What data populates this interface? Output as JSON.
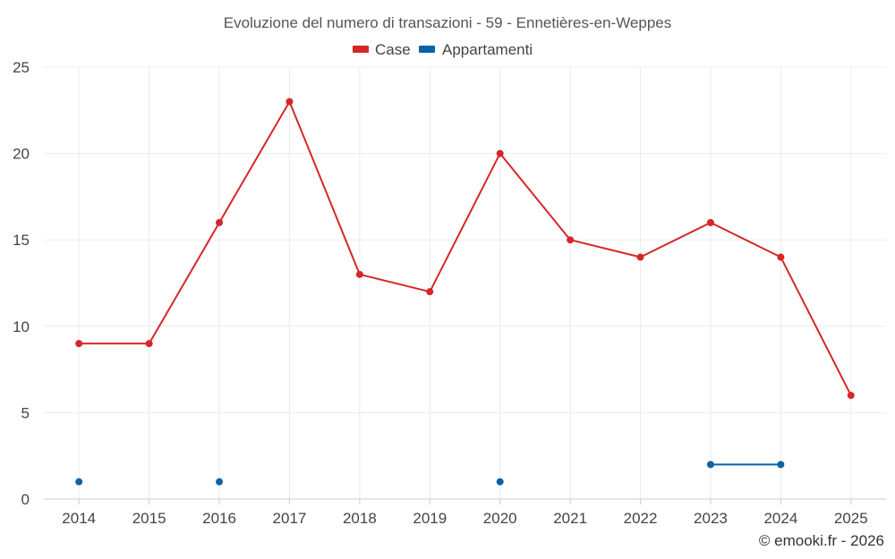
{
  "chart_data": {
    "type": "line",
    "title": "Evoluzione del numero di transazioni - 59 - Ennetières-en-Weppes",
    "categories": [
      "2014",
      "2015",
      "2016",
      "2017",
      "2018",
      "2019",
      "2020",
      "2021",
      "2022",
      "2023",
      "2024",
      "2025"
    ],
    "y_ticks": [
      "0",
      "5",
      "10",
      "15",
      "20",
      "25"
    ],
    "ylim": [
      0,
      25
    ],
    "grid": true,
    "legend_position": "top-center",
    "series": [
      {
        "name": "Case",
        "color": "#d62728",
        "values": [
          9,
          9,
          16,
          23,
          13,
          12,
          20,
          15,
          14,
          16,
          14,
          6
        ]
      },
      {
        "name": "Appartamenti",
        "color": "#0b62a4",
        "values": [
          1,
          null,
          1,
          null,
          null,
          null,
          1,
          null,
          null,
          2,
          2,
          null
        ]
      }
    ],
    "credit": "© emooki.fr - 2026"
  }
}
